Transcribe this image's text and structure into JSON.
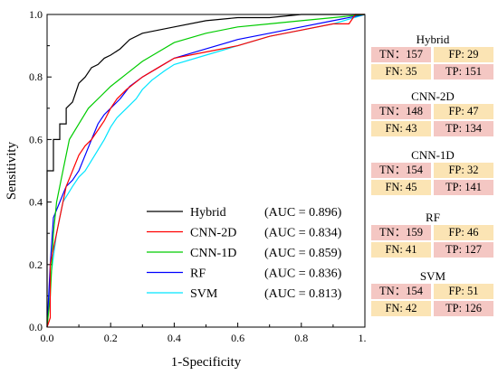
{
  "chart_data": {
    "type": "line",
    "xlabel": "1-Specificity",
    "ylabel": "Sensitivity",
    "xlim": [
      0.0,
      1.0
    ],
    "ylim": [
      0.0,
      1.0
    ],
    "x_ticks": [
      "0.0",
      "0.2",
      "0.4",
      "0.6",
      "0.8",
      "1.0"
    ],
    "y_ticks": [
      "0.0",
      "0.2",
      "0.4",
      "0.6",
      "0.8",
      "1.0"
    ],
    "grid": false,
    "legend_position": "bottom-right",
    "series": [
      {
        "name": "Hybrid",
        "auc_label": "(AUC = 0.896)",
        "color": "#000000",
        "points": [
          [
            0,
            0
          ],
          [
            0,
            0.5
          ],
          [
            0.02,
            0.5
          ],
          [
            0.02,
            0.6
          ],
          [
            0.04,
            0.6
          ],
          [
            0.04,
            0.65
          ],
          [
            0.06,
            0.65
          ],
          [
            0.06,
            0.7
          ],
          [
            0.08,
            0.72
          ],
          [
            0.09,
            0.75
          ],
          [
            0.1,
            0.78
          ],
          [
            0.12,
            0.8
          ],
          [
            0.14,
            0.83
          ],
          [
            0.16,
            0.84
          ],
          [
            0.18,
            0.86
          ],
          [
            0.2,
            0.87
          ],
          [
            0.23,
            0.89
          ],
          [
            0.26,
            0.92
          ],
          [
            0.3,
            0.94
          ],
          [
            0.35,
            0.95
          ],
          [
            0.4,
            0.96
          ],
          [
            0.5,
            0.98
          ],
          [
            0.6,
            0.99
          ],
          [
            0.7,
            0.99
          ],
          [
            0.8,
            1.0
          ],
          [
            0.9,
            1.0
          ],
          [
            1.0,
            1.0
          ]
        ]
      },
      {
        "name": "CNN-2D",
        "auc_label": "(AUC = 0.834)",
        "color": "#ff0000",
        "points": [
          [
            0,
            0
          ],
          [
            0.01,
            0.03
          ],
          [
            0.01,
            0.2
          ],
          [
            0.02,
            0.25
          ],
          [
            0.03,
            0.3
          ],
          [
            0.04,
            0.35
          ],
          [
            0.06,
            0.45
          ],
          [
            0.08,
            0.5
          ],
          [
            0.1,
            0.55
          ],
          [
            0.12,
            0.58
          ],
          [
            0.14,
            0.6
          ],
          [
            0.16,
            0.63
          ],
          [
            0.18,
            0.66
          ],
          [
            0.2,
            0.7
          ],
          [
            0.22,
            0.73
          ],
          [
            0.25,
            0.76
          ],
          [
            0.3,
            0.8
          ],
          [
            0.35,
            0.83
          ],
          [
            0.4,
            0.86
          ],
          [
            0.5,
            0.88
          ],
          [
            0.6,
            0.9
          ],
          [
            0.7,
            0.93
          ],
          [
            0.8,
            0.95
          ],
          [
            0.9,
            0.97
          ],
          [
            0.95,
            0.97
          ],
          [
            0.97,
            1.0
          ],
          [
            1.0,
            1.0
          ]
        ]
      },
      {
        "name": "CNN-1D",
        "auc_label": "(AUC = 0.859)",
        "color": "#00cc00",
        "points": [
          [
            0,
            0
          ],
          [
            0.01,
            0.1
          ],
          [
            0.02,
            0.3
          ],
          [
            0.03,
            0.4
          ],
          [
            0.05,
            0.5
          ],
          [
            0.07,
            0.6
          ],
          [
            0.1,
            0.65
          ],
          [
            0.13,
            0.7
          ],
          [
            0.17,
            0.74
          ],
          [
            0.2,
            0.77
          ],
          [
            0.25,
            0.81
          ],
          [
            0.3,
            0.85
          ],
          [
            0.35,
            0.88
          ],
          [
            0.4,
            0.91
          ],
          [
            0.5,
            0.94
          ],
          [
            0.6,
            0.96
          ],
          [
            0.7,
            0.97
          ],
          [
            0.8,
            0.98
          ],
          [
            0.9,
            0.99
          ],
          [
            1.0,
            1.0
          ]
        ]
      },
      {
        "name": "RF",
        "auc_label": "(AUC = 0.836)",
        "color": "#0000ff",
        "points": [
          [
            0,
            0
          ],
          [
            0.01,
            0.2
          ],
          [
            0.02,
            0.35
          ],
          [
            0.04,
            0.4
          ],
          [
            0.06,
            0.45
          ],
          [
            0.08,
            0.47
          ],
          [
            0.1,
            0.5
          ],
          [
            0.12,
            0.55
          ],
          [
            0.14,
            0.6
          ],
          [
            0.16,
            0.65
          ],
          [
            0.18,
            0.68
          ],
          [
            0.2,
            0.7
          ],
          [
            0.23,
            0.73
          ],
          [
            0.26,
            0.77
          ],
          [
            0.3,
            0.8
          ],
          [
            0.35,
            0.83
          ],
          [
            0.4,
            0.86
          ],
          [
            0.5,
            0.89
          ],
          [
            0.6,
            0.92
          ],
          [
            0.7,
            0.94
          ],
          [
            0.8,
            0.96
          ],
          [
            0.9,
            0.98
          ],
          [
            1.0,
            1.0
          ]
        ]
      },
      {
        "name": "SVM",
        "auc_label": "(AUC = 0.813)",
        "color": "#00e5ff",
        "points": [
          [
            0,
            0
          ],
          [
            0.01,
            0.15
          ],
          [
            0.03,
            0.3
          ],
          [
            0.05,
            0.4
          ],
          [
            0.08,
            0.45
          ],
          [
            0.1,
            0.48
          ],
          [
            0.12,
            0.5
          ],
          [
            0.15,
            0.55
          ],
          [
            0.18,
            0.6
          ],
          [
            0.2,
            0.64
          ],
          [
            0.22,
            0.67
          ],
          [
            0.25,
            0.7
          ],
          [
            0.28,
            0.73
          ],
          [
            0.3,
            0.76
          ],
          [
            0.33,
            0.79
          ],
          [
            0.37,
            0.82
          ],
          [
            0.4,
            0.84
          ],
          [
            0.5,
            0.87
          ],
          [
            0.6,
            0.9
          ],
          [
            0.7,
            0.93
          ],
          [
            0.8,
            0.95
          ],
          [
            0.9,
            0.97
          ],
          [
            1.0,
            1.0
          ]
        ]
      }
    ]
  },
  "confusion_matrices": [
    {
      "title": "Hybrid",
      "tn": "TN：157",
      "fp": "FP: 29",
      "fn": "FN: 35",
      "tp": "TP: 151"
    },
    {
      "title": "CNN-2D",
      "tn": "TN：148",
      "fp": "FP: 47",
      "fn": "FN: 43",
      "tp": "TP: 134"
    },
    {
      "title": "CNN-1D",
      "tn": "TN：154",
      "fp": "FP: 32",
      "fn": "FN: 45",
      "tp": "TP: 141"
    },
    {
      "title": "RF",
      "tn": "TN：159",
      "fp": "FP: 46",
      "fn": "FN: 41",
      "tp": "TP: 127"
    },
    {
      "title": "SVM",
      "tn": "TN：154",
      "fp": "FP: 51",
      "fn": "FN: 42",
      "tp": "TP: 126"
    }
  ],
  "colors": {
    "tn_tp_fill": "#f4c7c3",
    "fp_fn_fill": "#fbe4b4"
  }
}
